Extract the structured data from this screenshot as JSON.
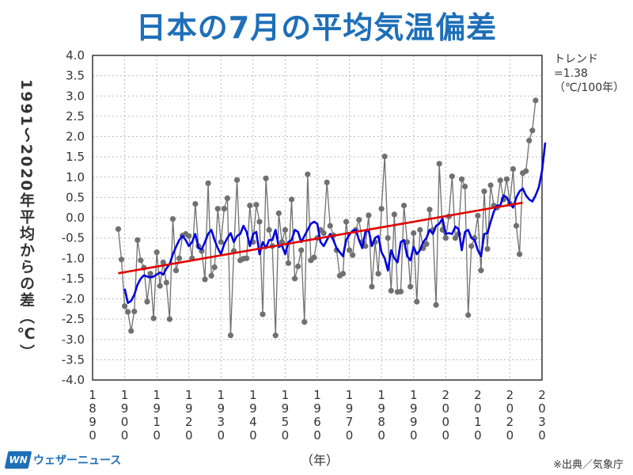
{
  "title": "日本の7月の平均気温偏差",
  "trend_text": [
    "トレンド",
    "=1.38",
    "（℃/100年）"
  ],
  "ylabel": "1991～2020年平均からの差（℃）",
  "xunit": "（年）",
  "source": "※出典／気象庁",
  "logo": {
    "mark": "WN",
    "text": "ウェザーニュース"
  },
  "colors": {
    "title": "#1e6fb8",
    "annual": "#707070",
    "smooth": "#0000dd",
    "trend": "#e00000"
  },
  "chart_data": {
    "type": "line",
    "x_start": 1898,
    "xlim": [
      1890,
      2030
    ],
    "ylim": [
      -4.0,
      4.0
    ],
    "xticks": [
      "1890",
      "1900",
      "1910",
      "1920",
      "1930",
      "1940",
      "1950",
      "1960",
      "1970",
      "1980",
      "1990",
      "2000",
      "2010",
      "2020",
      "2030"
    ],
    "yticks": [
      "4.0",
      "3.5",
      "3.0",
      "2.5",
      "2.0",
      "1.5",
      "1.0",
      "0.5",
      "0.0",
      "-0.5",
      "-1.0",
      "-1.5",
      "-2.0",
      "-2.5",
      "-3.0",
      "-3.5",
      "-4.0"
    ],
    "grid": true,
    "series": [
      {
        "kind": "annual",
        "values": [
          -0.28,
          -1.03,
          -2.18,
          -2.32,
          -2.79,
          -2.31,
          -0.55,
          -1.05,
          -1.23,
          -2.07,
          -1.38,
          -2.48,
          -0.85,
          -1.68,
          -1.1,
          -1.6,
          -2.5,
          -0.03,
          -1.3,
          -1.0,
          -0.44,
          -0.4,
          -0.45,
          -1.0,
          0.34,
          -0.7,
          -0.82,
          -1.52,
          0.85,
          -1.43,
          -1.22,
          0.22,
          -0.6,
          0.22,
          0.48,
          -2.9,
          -0.82,
          0.93,
          -1.05,
          -1.01,
          -1.0,
          0.3,
          -0.6,
          0.32,
          -0.1,
          -2.38,
          0.97,
          -0.3,
          -0.7,
          -2.9,
          0.11,
          -0.6,
          -0.3,
          -1.12,
          0.45,
          -1.5,
          -1.2,
          -0.8,
          -2.57,
          1.07,
          -1.05,
          -0.98,
          -0.5,
          -0.3,
          -0.38,
          0.87,
          -0.2,
          -0.43,
          -0.8,
          -1.43,
          -1.38,
          -0.1,
          -0.8,
          -0.92,
          -0.3,
          -0.05,
          -0.6,
          -0.7,
          0.06,
          -1.7,
          -0.6,
          -1.38,
          0.22,
          1.51,
          -0.5,
          -1.8,
          0.08,
          -1.83,
          -1.82,
          0.3,
          -0.6,
          -1.7,
          -0.38,
          -2.07,
          -0.3,
          -0.75,
          -0.65,
          0.2,
          -0.3,
          -2.15,
          1.33,
          -0.3,
          -0.5,
          0.03,
          1.02,
          -0.5,
          -0.4,
          0.95,
          0.77,
          -2.4,
          -0.7,
          -0.5,
          0.05,
          -1.3,
          0.65,
          -0.77,
          0.8,
          0.3,
          0.25,
          0.92,
          0.45,
          0.95,
          0.35,
          1.2,
          -0.2,
          -0.9,
          1.1,
          1.15,
          1.9,
          2.15,
          2.89
        ]
      },
      {
        "kind": "running-mean",
        "x_start": 1900,
        "values": [
          -1.75,
          -2.1,
          -2.05,
          -1.9,
          -1.65,
          -1.5,
          -1.42,
          -1.45,
          -1.47,
          -1.45,
          -1.4,
          -1.35,
          -1.4,
          -1.25,
          -1.15,
          -0.9,
          -0.72,
          -0.55,
          -0.45,
          -0.55,
          -0.7,
          -0.6,
          -0.4,
          -0.75,
          -0.78,
          -0.6,
          -0.4,
          -0.3,
          -0.55,
          -0.75,
          -0.9,
          -0.65,
          -0.5,
          -0.38,
          -0.6,
          -0.45,
          -0.4,
          -0.2,
          -0.35,
          -0.7,
          -0.4,
          -0.35,
          -0.9,
          -0.6,
          -0.75,
          -0.55,
          -0.55,
          -0.3,
          -0.72,
          -0.68,
          -0.9,
          -0.6,
          -0.55,
          -0.3,
          -0.35,
          -0.6,
          -0.45,
          -0.3,
          -0.15,
          -0.1,
          -0.15,
          -0.6,
          -0.7,
          -0.55,
          -0.4,
          -0.55,
          -0.75,
          -0.85,
          -0.95,
          -0.55,
          -0.42,
          -0.32,
          -0.3,
          -0.55,
          -0.75,
          -0.35,
          -0.3,
          -0.7,
          -0.5,
          -0.45,
          -0.85,
          -1.0,
          -1.3,
          -0.8,
          -1.0,
          -1.1,
          -0.6,
          -0.55,
          -0.95,
          -1.05,
          -0.72,
          -0.9,
          -0.8,
          -0.6,
          -0.5,
          -0.3,
          -0.4,
          -0.2,
          -0.15,
          -0.02,
          -0.4,
          -0.38,
          -0.4,
          -0.22,
          -0.28,
          -0.8,
          -0.35,
          -0.3,
          -0.5,
          -0.55,
          -0.8,
          -0.95,
          -0.4,
          -0.38,
          -0.1,
          0.15,
          0.3,
          0.3,
          0.55,
          0.5,
          0.35,
          0.25,
          0.5,
          0.65,
          0.72,
          0.55,
          0.45,
          0.4,
          0.55,
          0.75,
          1.15,
          1.85
        ]
      },
      {
        "kind": "trend",
        "x": [
          1898,
          2024
        ],
        "values": [
          -1.37,
          0.37
        ]
      }
    ]
  }
}
